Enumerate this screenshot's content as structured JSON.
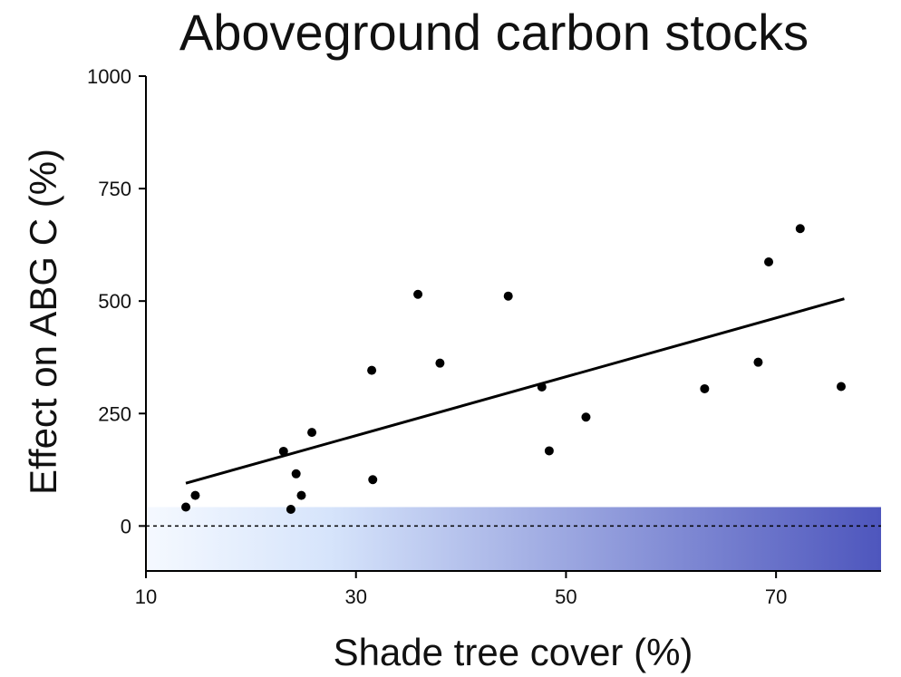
{
  "chart_data": {
    "type": "scatter",
    "title": "Aboveground carbon stocks",
    "xlabel": "Shade tree cover (%)",
    "ylabel": "Effect on ABG C (%)",
    "xlim": [
      10,
      80
    ],
    "ylim": [
      -100,
      1000
    ],
    "x_ticks": [
      10,
      30,
      50,
      70
    ],
    "y_ticks": [
      0,
      250,
      500,
      750,
      1000
    ],
    "points": [
      {
        "x": 13.8,
        "y": 42
      },
      {
        "x": 14.7,
        "y": 68
      },
      {
        "x": 23.1,
        "y": 166
      },
      {
        "x": 23.8,
        "y": 37
      },
      {
        "x": 24.3,
        "y": 116
      },
      {
        "x": 24.8,
        "y": 68
      },
      {
        "x": 25.8,
        "y": 208
      },
      {
        "x": 31.5,
        "y": 346
      },
      {
        "x": 31.6,
        "y": 103
      },
      {
        "x": 35.9,
        "y": 515
      },
      {
        "x": 38.0,
        "y": 362
      },
      {
        "x": 44.5,
        "y": 511
      },
      {
        "x": 47.7,
        "y": 309
      },
      {
        "x": 48.4,
        "y": 167
      },
      {
        "x": 51.9,
        "y": 242
      },
      {
        "x": 63.2,
        "y": 305
      },
      {
        "x": 68.3,
        "y": 364
      },
      {
        "x": 69.3,
        "y": 587
      },
      {
        "x": 72.3,
        "y": 661
      },
      {
        "x": 76.2,
        "y": 310
      }
    ],
    "trendline": {
      "x": [
        13.8,
        76.5
      ],
      "y": [
        95,
        505
      ]
    },
    "reference_line": {
      "y": 0,
      "style": "dotted"
    },
    "shade_band": {
      "y_range": [
        -100,
        42
      ],
      "color_start": "#f5f9ff",
      "color_mid": "#d6e4fb",
      "color_end": "#4e56bd"
    },
    "grid": false,
    "legend": "none",
    "colors": {
      "points": "#000000",
      "line": "#000000",
      "axis": "#000000"
    }
  }
}
